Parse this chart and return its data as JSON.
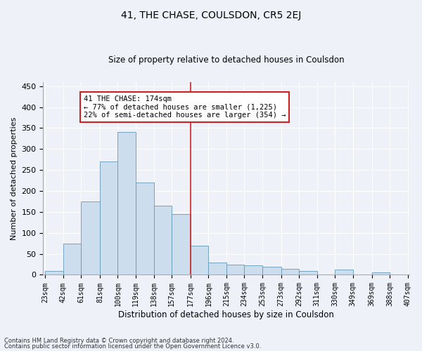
{
  "title": "41, THE CHASE, COULSDON, CR5 2EJ",
  "subtitle": "Size of property relative to detached houses in Coulsdon",
  "xlabel": "Distribution of detached houses by size in Coulsdon",
  "ylabel": "Number of detached properties",
  "bar_color": "#ccdded",
  "bar_edge_color": "#6699bb",
  "background_color": "#eef2f8",
  "grid_color": "#ffffff",
  "red_line_x": 177,
  "annotation_line1": "41 THE CHASE: 174sqm",
  "annotation_line2": "← 77% of detached houses are smaller (1,225)",
  "annotation_line3": "22% of semi-detached houses are larger (354) →",
  "annotation_box_color": "#cc2222",
  "footer_line1": "Contains HM Land Registry data © Crown copyright and database right 2024.",
  "footer_line2": "Contains public sector information licensed under the Open Government Licence v3.0.",
  "bin_edges": [
    23,
    42,
    61,
    81,
    100,
    119,
    138,
    157,
    177,
    196,
    215,
    234,
    253,
    273,
    292,
    311,
    330,
    349,
    369,
    388,
    407
  ],
  "bar_heights": [
    10,
    75,
    175,
    270,
    340,
    220,
    165,
    145,
    70,
    30,
    25,
    22,
    20,
    15,
    10,
    0,
    12,
    0,
    5,
    0
  ],
  "ylim": [
    0,
    460
  ],
  "yticks": [
    0,
    50,
    100,
    150,
    200,
    250,
    300,
    350,
    400,
    450
  ]
}
